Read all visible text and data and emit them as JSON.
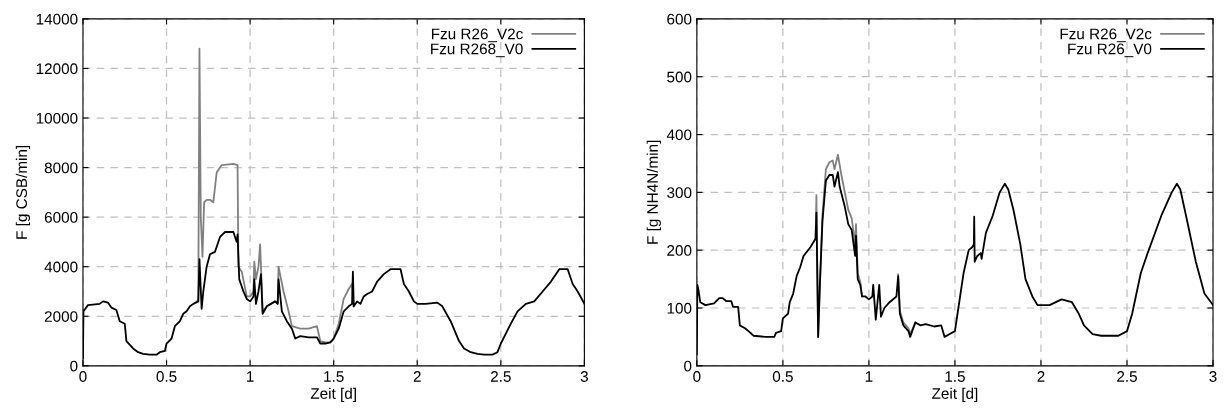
{
  "chart_data": [
    {
      "type": "line",
      "xlabel": "Zeit [d]",
      "ylabel": "F [g CSB/min]",
      "xlim": [
        0,
        3
      ],
      "ylim": [
        0,
        14000
      ],
      "xticks": [
        0,
        0.5,
        1,
        1.5,
        2,
        2.5,
        3
      ],
      "yticks": [
        0,
        2000,
        4000,
        6000,
        8000,
        10000,
        12000,
        14000
      ],
      "grid": true,
      "legend": "top right",
      "line_style": "solid",
      "series": [
        {
          "name": "Fzu R26_V2c",
          "color": "#808080",
          "x": [
            0.68,
            0.69,
            0.697,
            0.705,
            0.715,
            0.725,
            0.74,
            0.76,
            0.78,
            0.8,
            0.83,
            0.9,
            0.925,
            0.93,
            0.95,
            0.98,
            1.0,
            1.02,
            1.025,
            1.035,
            1.05,
            1.06,
            1.075,
            1.1,
            1.15,
            1.165,
            1.17,
            1.2,
            1.23,
            1.25,
            1.3,
            1.35,
            1.4,
            1.42,
            1.45,
            1.48,
            1.5,
            1.53,
            1.56,
            1.59,
            1.61,
            1.62
          ],
          "values": [
            2600,
            2600,
            12800,
            6000,
            4400,
            6600,
            6700,
            6700,
            6600,
            7800,
            8100,
            8150,
            8100,
            4000,
            3800,
            2800,
            2800,
            3000,
            4200,
            3500,
            4000,
            4900,
            2200,
            2400,
            2600,
            2500,
            4000,
            3000,
            2200,
            1600,
            1500,
            1500,
            1600,
            1000,
            950,
            950,
            1100,
            1700,
            2700,
            3100,
            3300,
            2400
          ]
        },
        {
          "name": "Fzu R268_V0",
          "color": "#000000",
          "x": [
            0,
            0.003,
            0.03,
            0.1,
            0.12,
            0.15,
            0.17,
            0.2,
            0.22,
            0.25,
            0.26,
            0.3,
            0.33,
            0.36,
            0.4,
            0.44,
            0.46,
            0.49,
            0.5,
            0.53,
            0.55,
            0.58,
            0.6,
            0.62,
            0.64,
            0.66,
            0.69,
            0.697,
            0.71,
            0.72,
            0.74,
            0.76,
            0.79,
            0.82,
            0.85,
            0.9,
            0.92,
            0.925,
            0.935,
            0.96,
            0.98,
            1.0,
            1.02,
            1.025,
            1.035,
            1.05,
            1.065,
            1.075,
            1.1,
            1.15,
            1.165,
            1.17,
            1.19,
            1.22,
            1.25,
            1.27,
            1.3,
            1.35,
            1.4,
            1.42,
            1.45,
            1.48,
            1.5,
            1.53,
            1.56,
            1.59,
            1.61,
            1.615,
            1.62,
            1.64,
            1.66,
            1.68,
            1.7,
            1.73,
            1.76,
            1.8,
            1.84,
            1.9,
            1.92,
            1.95,
            1.98,
            2.0,
            2.05,
            2.12,
            2.15,
            2.2,
            2.25,
            2.28,
            2.32,
            2.36,
            2.4,
            2.45,
            2.48,
            2.5,
            2.53,
            2.56,
            2.6,
            2.65,
            2.7,
            2.75,
            2.8,
            2.85,
            2.9,
            2.93,
            2.96,
            3.0
          ],
          "values": [
            300,
            2200,
            2450,
            2500,
            2600,
            2550,
            2350,
            2250,
            1800,
            1700,
            1000,
            700,
            550,
            480,
            450,
            450,
            550,
            600,
            900,
            1100,
            1600,
            1800,
            2100,
            2200,
            2400,
            2500,
            2600,
            4300,
            2300,
            3000,
            4000,
            4500,
            4600,
            5200,
            5400,
            5400,
            5000,
            5300,
            3500,
            3000,
            2700,
            2600,
            2800,
            3500,
            2500,
            3000,
            3700,
            2100,
            2400,
            2600,
            2500,
            3500,
            2200,
            1800,
            1500,
            1100,
            1200,
            1150,
            1150,
            900,
            900,
            950,
            1100,
            1500,
            2200,
            2400,
            2500,
            3800,
            2400,
            2600,
            2500,
            2800,
            2900,
            3000,
            3400,
            3700,
            3900,
            3900,
            3300,
            3000,
            2600,
            2500,
            2500,
            2550,
            2400,
            1800,
            1000,
            700,
            550,
            480,
            450,
            450,
            550,
            900,
            1300,
            1700,
            2200,
            2500,
            2600,
            3000,
            3400,
            3900,
            3900,
            3300,
            3000,
            2500
          ]
        }
      ]
    },
    {
      "type": "line",
      "xlabel": "Zeit [d]",
      "ylabel": "F [g NH4N/min]",
      "xlim": [
        0,
        3
      ],
      "ylim": [
        0,
        600
      ],
      "xticks": [
        0,
        0.5,
        1,
        1.5,
        2,
        2.5,
        3
      ],
      "yticks": [
        0,
        100,
        200,
        300,
        400,
        500,
        600
      ],
      "grid": true,
      "legend": "top right",
      "line_style": "solid",
      "series": [
        {
          "name": "Fzu R26_V2c",
          "color": "#808080",
          "x": [
            0.68,
            0.69,
            0.695,
            0.705,
            0.715,
            0.73,
            0.75,
            0.77,
            0.79,
            0.8,
            0.82,
            0.84,
            0.86,
            0.88,
            0.9,
            0.92,
            0.925,
            0.935,
            0.95,
            0.96,
            1.0,
            1.17,
            1.18,
            1.2,
            1.23,
            1.24,
            1.27
          ],
          "values": [
            215,
            220,
            295,
            50,
            140,
            260,
            340,
            352,
            355,
            340,
            365,
            330,
            300,
            270,
            255,
            210,
            245,
            160,
            145,
            120,
            null,
            158,
            95,
            75,
            65,
            55,
            75
          ]
        },
        {
          "name": "Fzu R26_V0",
          "color": "#000000",
          "x": [
            0,
            0.003,
            0.01,
            0.02,
            0.05,
            0.1,
            0.13,
            0.15,
            0.17,
            0.2,
            0.21,
            0.24,
            0.25,
            0.28,
            0.3,
            0.33,
            0.4,
            0.45,
            0.46,
            0.49,
            0.5,
            0.53,
            0.54,
            0.56,
            0.58,
            0.6,
            0.62,
            0.66,
            0.69,
            0.695,
            0.705,
            0.715,
            0.73,
            0.75,
            0.77,
            0.79,
            0.8,
            0.82,
            0.83,
            0.86,
            0.88,
            0.9,
            0.92,
            0.925,
            0.935,
            0.95,
            0.96,
            0.98,
            1.0,
            1.02,
            1.025,
            1.04,
            1.06,
            1.07,
            1.09,
            1.12,
            1.16,
            1.17,
            1.18,
            1.2,
            1.23,
            1.24,
            1.27,
            1.3,
            1.33,
            1.38,
            1.42,
            1.44,
            1.47,
            1.5,
            1.52,
            1.55,
            1.58,
            1.6,
            1.61,
            1.612,
            1.615,
            1.63,
            1.65,
            1.655,
            1.68,
            1.72,
            1.76,
            1.79,
            1.81,
            1.84,
            1.88,
            1.91,
            1.95,
            1.98,
            2.05,
            2.12,
            2.18,
            2.22,
            2.25,
            2.3,
            2.35,
            2.45,
            2.5,
            2.53,
            2.58,
            2.62,
            2.7,
            2.76,
            2.79,
            2.81,
            2.85,
            2.9,
            2.95,
            3.0
          ],
          "values": [
            20,
            140,
            130,
            110,
            105,
            108,
            117,
            117,
            112,
            112,
            102,
            102,
            70,
            65,
            60,
            52,
            50,
            50,
            57,
            60,
            82,
            90,
            110,
            125,
            155,
            170,
            190,
            205,
            220,
            265,
            50,
            140,
            250,
            320,
            330,
            330,
            310,
            335,
            310,
            275,
            245,
            235,
            190,
            225,
            150,
            140,
            120,
            120,
            115,
            120,
            140,
            80,
            140,
            85,
            100,
            110,
            120,
            155,
            90,
            70,
            60,
            50,
            75,
            70,
            72,
            68,
            70,
            50,
            55,
            60,
            100,
            160,
            200,
            205,
            210,
            258,
            180,
            190,
            195,
            185,
            230,
            260,
            300,
            315,
            305,
            270,
            210,
            150,
            120,
            105,
            105,
            115,
            110,
            90,
            70,
            55,
            52,
            52,
            60,
            90,
            160,
            195,
            260,
            300,
            315,
            305,
            250,
            180,
            125,
            105
          ]
        }
      ]
    }
  ]
}
